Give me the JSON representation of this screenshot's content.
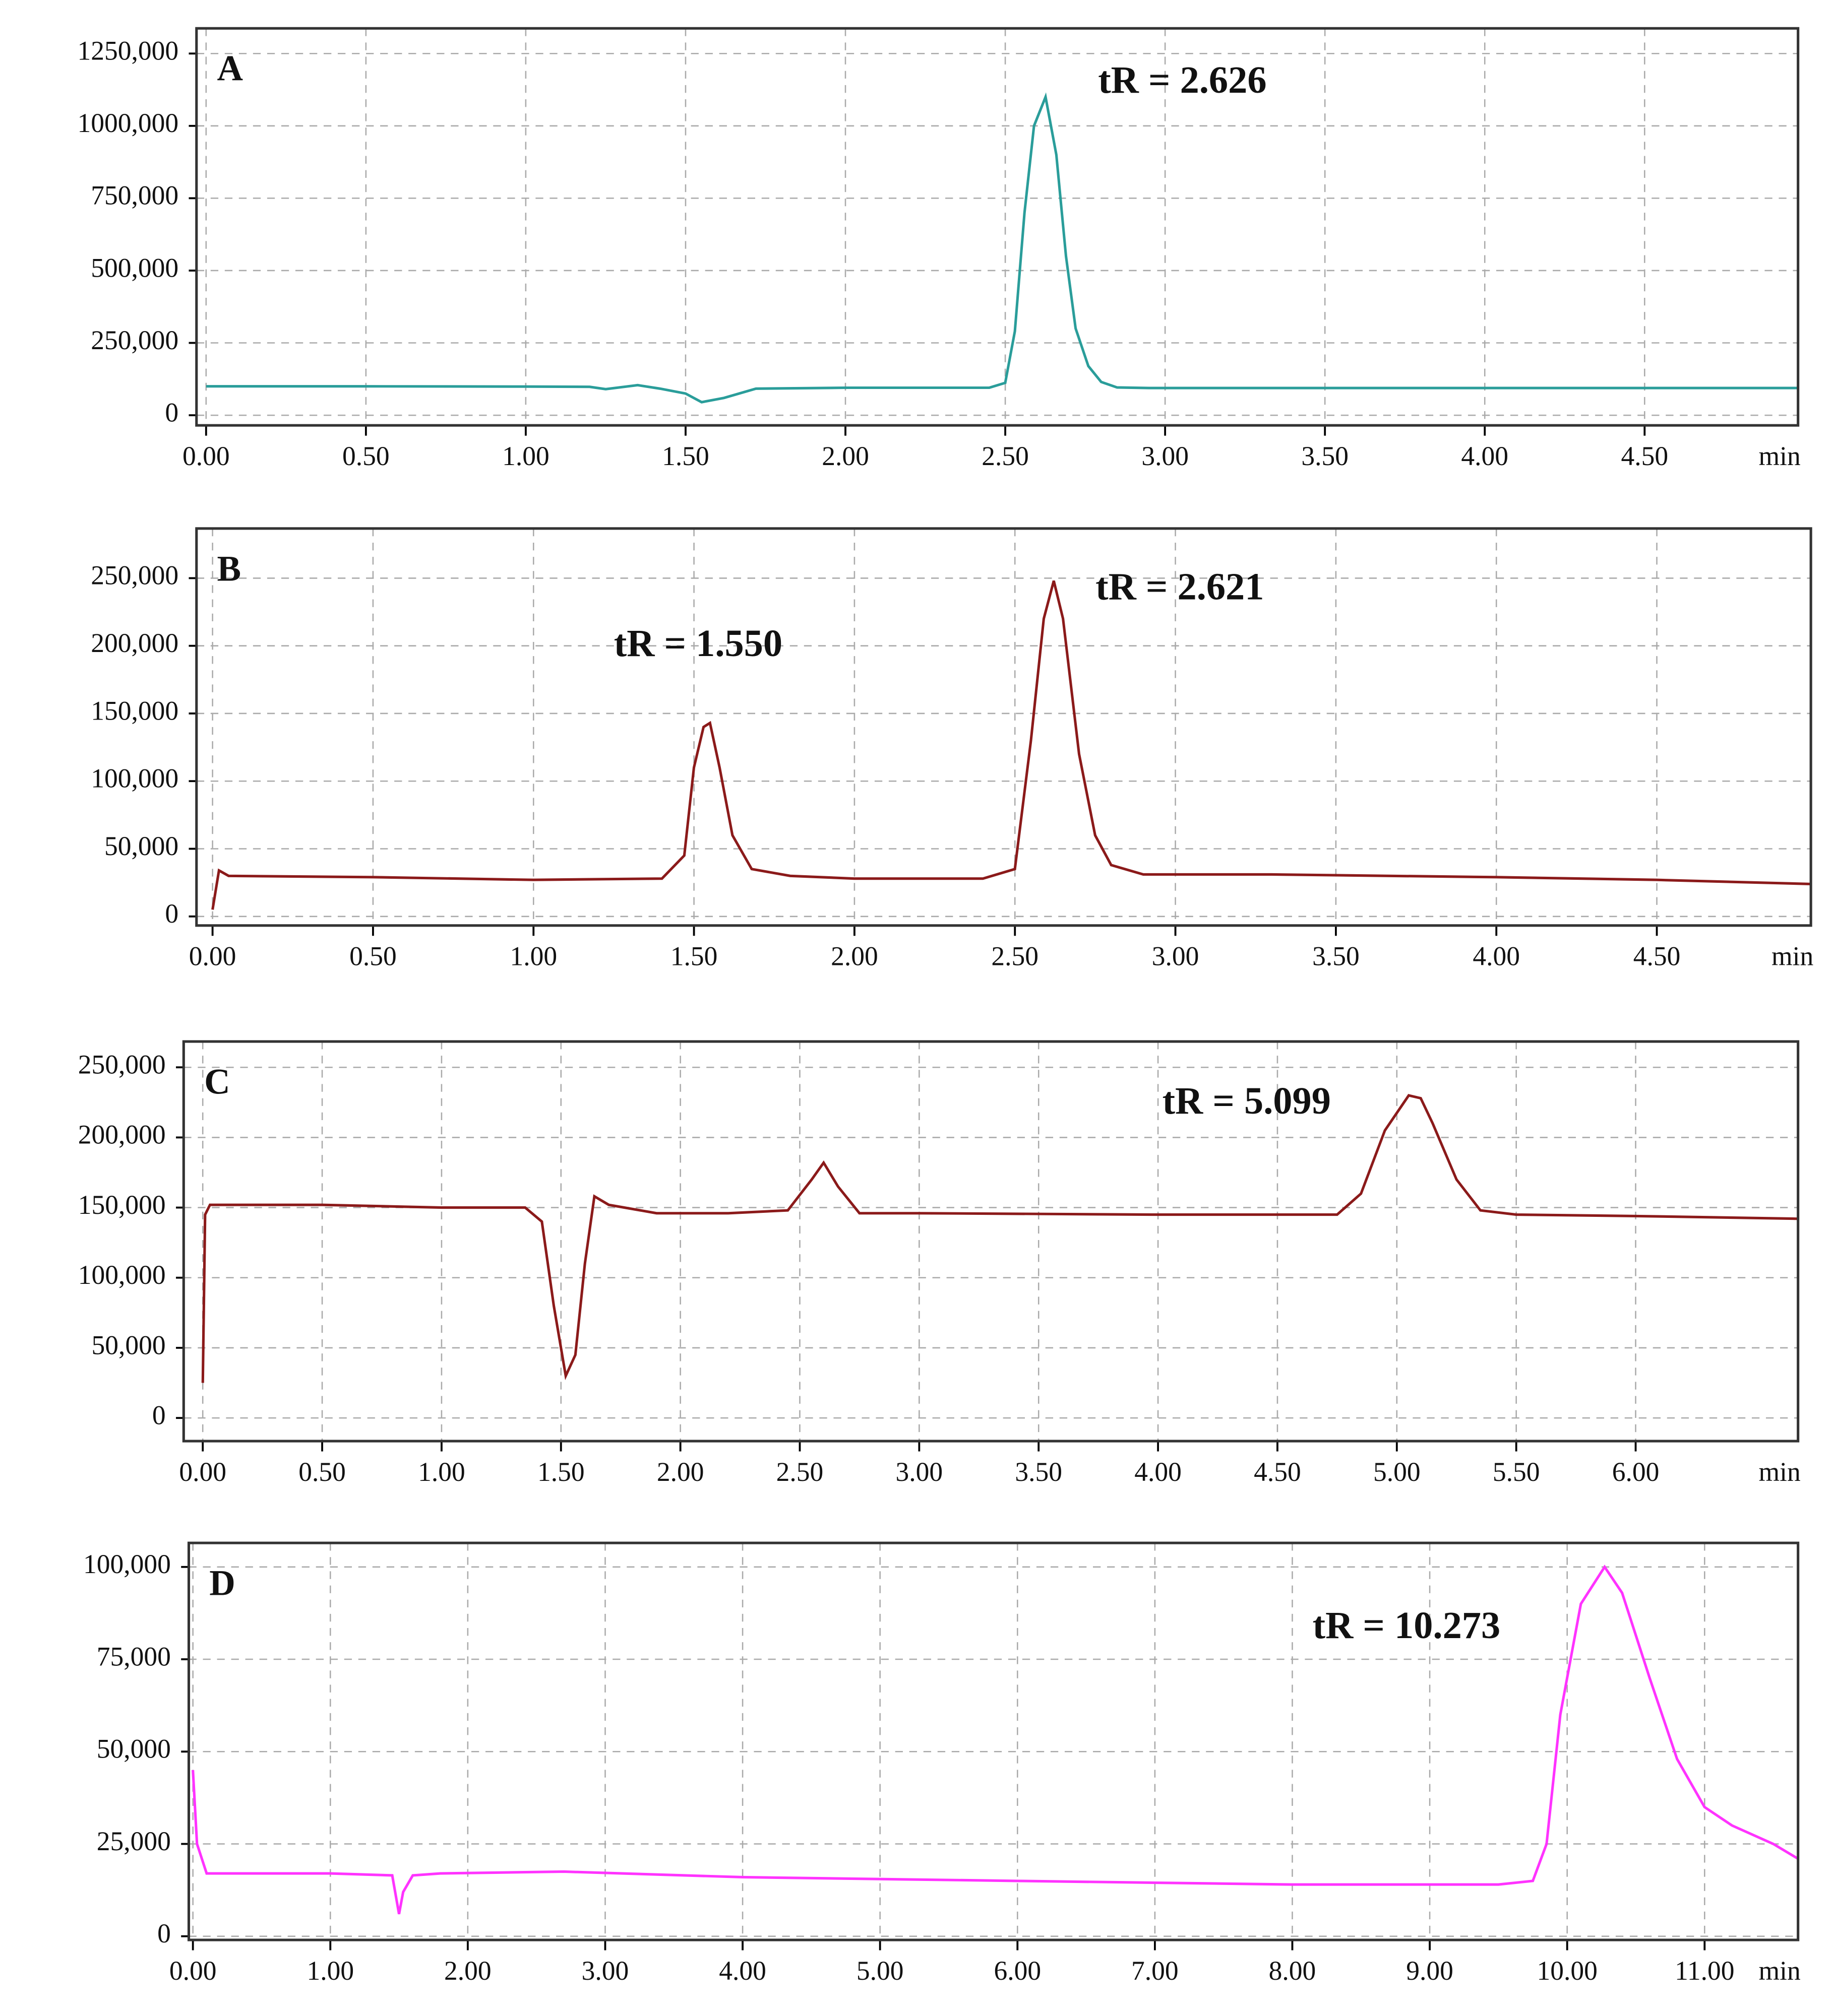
{
  "chart_data": [
    {
      "type": "line",
      "title": "A",
      "annotations": [
        "tR = 2.626"
      ],
      "x_label": "min",
      "color": "#2a9d9a",
      "grid": true,
      "xlim": [
        -0.03,
        4.98
      ],
      "ylim": [
        -35000,
        1337000
      ],
      "xticks": [
        {
          "value": 0,
          "label": "0.00"
        },
        {
          "value": 0.5,
          "label": "0.50"
        },
        {
          "value": 1,
          "label": "1.00"
        },
        {
          "value": 1.5,
          "label": "1.50"
        },
        {
          "value": 2,
          "label": "2.00"
        },
        {
          "value": 2.5,
          "label": "2.50"
        },
        {
          "value": 3,
          "label": "3.00"
        },
        {
          "value": 3.5,
          "label": "3.50"
        },
        {
          "value": 4,
          "label": "4.00"
        },
        {
          "value": 4.5,
          "label": "4.50"
        }
      ],
      "yticks": [
        0,
        {
          "value": 250000,
          "label": "250,000"
        },
        {
          "value": 500000,
          "label": "500,000"
        },
        {
          "value": 750000,
          "label": "750,000"
        },
        {
          "value": 1000000,
          "label": "1000,000"
        },
        {
          "value": 1250000,
          "label": "1250,000"
        }
      ],
      "x": [
        0,
        0.5,
        1.0,
        1.2,
        1.25,
        1.35,
        1.42,
        1.5,
        1.55,
        1.62,
        1.72,
        2.0,
        2.45,
        2.5,
        2.53,
        2.56,
        2.59,
        2.626,
        2.66,
        2.69,
        2.72,
        2.76,
        2.8,
        2.85,
        2.95,
        3.5,
        4.0,
        4.5,
        4.98
      ],
      "values": [
        100000,
        100000,
        99000,
        98000,
        90000,
        104000,
        92000,
        75000,
        45000,
        60000,
        92000,
        95000,
        95000,
        112000,
        290000,
        700000,
        1000000,
        1100000,
        900000,
        550000,
        300000,
        170000,
        115000,
        96000,
        94000,
        94000,
        94000,
        94000,
        94000
      ]
    },
    {
      "type": "line",
      "title": "B",
      "annotations": [
        "tR = 1.550",
        "tR = 2.621"
      ],
      "x_label": "min",
      "color": "#8b1a1a",
      "grid": true,
      "xlim": [
        -0.05,
        4.98
      ],
      "ylim": [
        -6700,
        286700
      ],
      "xticks": [
        {
          "value": 0,
          "label": "0.00"
        },
        {
          "value": 0.5,
          "label": "0.50"
        },
        {
          "value": 1,
          "label": "1.00"
        },
        {
          "value": 1.5,
          "label": "1.50"
        },
        {
          "value": 2,
          "label": "2.00"
        },
        {
          "value": 2.5,
          "label": "2.50"
        },
        {
          "value": 3,
          "label": "3.00"
        },
        {
          "value": 3.5,
          "label": "3.50"
        },
        {
          "value": 4,
          "label": "4.00"
        },
        {
          "value": 4.5,
          "label": "4.50"
        }
      ],
      "yticks": [
        0,
        {
          "value": 50000,
          "label": "50,000"
        },
        {
          "value": 100000,
          "label": "100,000"
        },
        {
          "value": 150000,
          "label": "150,000"
        },
        {
          "value": 200000,
          "label": "200,000"
        },
        {
          "value": 250000,
          "label": "250,000"
        }
      ],
      "x": [
        0,
        0.02,
        0.05,
        0.5,
        1.0,
        1.4,
        1.47,
        1.5,
        1.53,
        1.55,
        1.58,
        1.62,
        1.68,
        1.8,
        2.0,
        2.4,
        2.5,
        2.55,
        2.59,
        2.621,
        2.65,
        2.7,
        2.75,
        2.8,
        2.9,
        3.3,
        4.0,
        4.5,
        4.98
      ],
      "values": [
        5000,
        34000,
        30000,
        29000,
        27000,
        28000,
        45000,
        110000,
        140000,
        143000,
        110000,
        60000,
        35000,
        30000,
        28000,
        28000,
        35000,
        130000,
        220000,
        248000,
        220000,
        120000,
        60000,
        38000,
        31000,
        31000,
        29000,
        27000,
        24000
      ]
    },
    {
      "type": "line",
      "title": "C",
      "annotations": [
        "tR = 5.099"
      ],
      "x_label": "min",
      "color": "#8b1a1a",
      "grid": true,
      "xlim": [
        -0.08,
        6.68
      ],
      "ylim": [
        -16500,
        268400
      ],
      "xticks": [
        {
          "value": 0,
          "label": "0.00"
        },
        {
          "value": 0.5,
          "label": "0.50"
        },
        {
          "value": 1,
          "label": "1.00"
        },
        {
          "value": 1.5,
          "label": "1.50"
        },
        {
          "value": 2,
          "label": "2.00"
        },
        {
          "value": 2.5,
          "label": "2.50"
        },
        {
          "value": 3,
          "label": "3.00"
        },
        {
          "value": 3.5,
          "label": "3.50"
        },
        {
          "value": 4,
          "label": "4.00"
        },
        {
          "value": 4.5,
          "label": "4.50"
        },
        {
          "value": 5,
          "label": "5.00"
        },
        {
          "value": 5.5,
          "label": "5.50"
        },
        {
          "value": 6,
          "label": "6.00"
        }
      ],
      "yticks": [
        0,
        {
          "value": 50000,
          "label": "50,000"
        },
        {
          "value": 100000,
          "label": "100,000"
        },
        {
          "value": 150000,
          "label": "150,000"
        },
        {
          "value": 200000,
          "label": "200,000"
        },
        {
          "value": 250000,
          "label": "250,000"
        }
      ],
      "x": [
        0,
        0.01,
        0.03,
        0.5,
        1.0,
        1.35,
        1.42,
        1.47,
        1.52,
        1.56,
        1.6,
        1.64,
        1.7,
        1.9,
        2.2,
        2.45,
        2.55,
        2.6,
        2.66,
        2.75,
        3.0,
        4.0,
        4.75,
        4.85,
        4.95,
        5.05,
        5.1,
        5.15,
        5.25,
        5.35,
        5.5,
        6.0,
        6.68
      ],
      "values": [
        25000,
        145000,
        152000,
        152000,
        150000,
        150000,
        140000,
        80000,
        30000,
        45000,
        110000,
        158000,
        152000,
        146000,
        146000,
        148000,
        170000,
        182000,
        165000,
        146000,
        146000,
        145000,
        145000,
        160000,
        205000,
        230000,
        228000,
        210000,
        170000,
        148000,
        145000,
        144000,
        142000
      ]
    },
    {
      "type": "line",
      "title": "D",
      "annotations": [
        "tR = 10.273"
      ],
      "x_label": "min",
      "color": "#ff33ff",
      "grid": true,
      "xlim": [
        -0.03,
        11.68
      ],
      "ylim": [
        -1000,
        106500
      ],
      "xticks": [
        {
          "value": 0,
          "label": "0.00"
        },
        {
          "value": 1,
          "label": "1.00"
        },
        {
          "value": 2,
          "label": "2.00"
        },
        {
          "value": 3,
          "label": "3.00"
        },
        {
          "value": 4,
          "label": "4.00"
        },
        {
          "value": 5,
          "label": "5.00"
        },
        {
          "value": 6,
          "label": "6.00"
        },
        {
          "value": 7,
          "label": "7.00"
        },
        {
          "value": 8,
          "label": "8.00"
        },
        {
          "value": 9,
          "label": "9.00"
        },
        {
          "value": 10,
          "label": "10.00"
        },
        {
          "value": 11,
          "label": "11.00"
        }
      ],
      "yticks": [
        0,
        {
          "value": 25000,
          "label": "25,000"
        },
        {
          "value": 50000,
          "label": "50,000"
        },
        {
          "value": 75000,
          "label": "75,000"
        },
        {
          "value": 100000,
          "label": "100,000"
        }
      ],
      "x": [
        0,
        0.03,
        0.1,
        1.0,
        1.45,
        1.5,
        1.53,
        1.6,
        1.8,
        2.7,
        4.0,
        6.0,
        8.0,
        9.5,
        9.75,
        9.85,
        9.95,
        10.1,
        10.273,
        10.4,
        10.6,
        10.8,
        11.0,
        11.2,
        11.5,
        11.68
      ],
      "values": [
        45000,
        25000,
        17000,
        17000,
        16500,
        6000,
        12000,
        16500,
        17000,
        17500,
        16000,
        15000,
        14000,
        14000,
        15000,
        25000,
        60000,
        90000,
        100000,
        93000,
        70000,
        48000,
        35000,
        30000,
        25000,
        21000
      ]
    }
  ]
}
